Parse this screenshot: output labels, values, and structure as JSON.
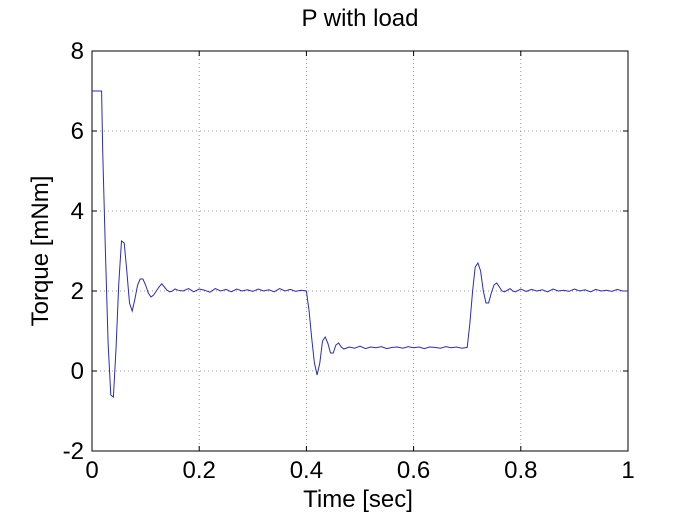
{
  "chart_data": {
    "type": "line",
    "title": "P with load",
    "xlabel": "Time [sec]",
    "ylabel": "Torque [mNm]",
    "xlim": [
      0,
      1
    ],
    "ylim": [
      -2,
      8
    ],
    "xticks": [
      0,
      0.2,
      0.4,
      0.6,
      0.8,
      1
    ],
    "xtick_labels": [
      "0",
      "0.2",
      "0.4",
      "0.6",
      "0.8",
      "1"
    ],
    "yticks": [
      -2,
      0,
      2,
      4,
      6,
      8
    ],
    "ytick_labels": [
      "-2",
      "0",
      "2",
      "4",
      "6",
      "8"
    ],
    "grid": true,
    "series": [
      {
        "name": "torque",
        "color": "#2b2bb8",
        "x": [
          0,
          0.018,
          0.02,
          0.025,
          0.03,
          0.035,
          0.04,
          0.045,
          0.05,
          0.055,
          0.06,
          0.065,
          0.07,
          0.075,
          0.08,
          0.085,
          0.09,
          0.095,
          0.1,
          0.105,
          0.11,
          0.115,
          0.12,
          0.125,
          0.13,
          0.135,
          0.14,
          0.145,
          0.15,
          0.155,
          0.16,
          0.17,
          0.18,
          0.19,
          0.2,
          0.21,
          0.22,
          0.23,
          0.24,
          0.25,
          0.26,
          0.27,
          0.28,
          0.29,
          0.3,
          0.31,
          0.32,
          0.33,
          0.34,
          0.35,
          0.36,
          0.37,
          0.38,
          0.39,
          0.4,
          0.405,
          0.41,
          0.415,
          0.42,
          0.425,
          0.43,
          0.435,
          0.44,
          0.445,
          0.45,
          0.455,
          0.46,
          0.465,
          0.47,
          0.48,
          0.49,
          0.5,
          0.51,
          0.52,
          0.53,
          0.54,
          0.55,
          0.56,
          0.57,
          0.58,
          0.59,
          0.6,
          0.61,
          0.62,
          0.63,
          0.64,
          0.65,
          0.66,
          0.67,
          0.68,
          0.69,
          0.7,
          0.705,
          0.71,
          0.715,
          0.72,
          0.725,
          0.73,
          0.735,
          0.74,
          0.745,
          0.75,
          0.755,
          0.76,
          0.765,
          0.77,
          0.775,
          0.78,
          0.785,
          0.79,
          0.8,
          0.81,
          0.82,
          0.83,
          0.84,
          0.85,
          0.86,
          0.87,
          0.88,
          0.89,
          0.9,
          0.91,
          0.92,
          0.93,
          0.94,
          0.95,
          0.96,
          0.97,
          0.98,
          0.99,
          1.0
        ],
        "y": [
          7.0,
          7.0,
          5.5,
          3.0,
          0.7,
          -0.6,
          -0.65,
          0.6,
          2.2,
          3.25,
          3.2,
          2.5,
          1.7,
          1.5,
          1.8,
          2.15,
          2.3,
          2.3,
          2.15,
          1.95,
          1.85,
          1.9,
          2.0,
          2.1,
          2.18,
          2.1,
          2.02,
          1.98,
          2.0,
          2.05,
          2.02,
          2.0,
          2.06,
          1.98,
          2.05,
          2.02,
          1.97,
          2.06,
          2.0,
          2.04,
          1.98,
          2.05,
          2.0,
          2.03,
          1.99,
          2.05,
          2.0,
          2.03,
          1.98,
          2.06,
          2.0,
          2.04,
          1.99,
          2.02,
          2.0,
          1.5,
          0.8,
          0.2,
          -0.1,
          0.2,
          0.75,
          0.85,
          0.7,
          0.45,
          0.45,
          0.65,
          0.7,
          0.6,
          0.55,
          0.6,
          0.57,
          0.62,
          0.56,
          0.6,
          0.58,
          0.61,
          0.56,
          0.59,
          0.6,
          0.57,
          0.61,
          0.58,
          0.6,
          0.56,
          0.6,
          0.59,
          0.57,
          0.61,
          0.58,
          0.6,
          0.57,
          0.59,
          1.2,
          2.0,
          2.6,
          2.7,
          2.5,
          2.0,
          1.7,
          1.7,
          1.95,
          2.15,
          2.2,
          2.1,
          2.0,
          1.98,
          2.02,
          2.06,
          2.0,
          1.98,
          2.05,
          1.99,
          2.04,
          2.0,
          2.03,
          1.98,
          2.05,
          2.0,
          2.02,
          1.99,
          2.05,
          2.0,
          2.03,
          1.98,
          2.04,
          2.0,
          2.02,
          1.99,
          2.04,
          2.0,
          2.0
        ]
      }
    ]
  }
}
